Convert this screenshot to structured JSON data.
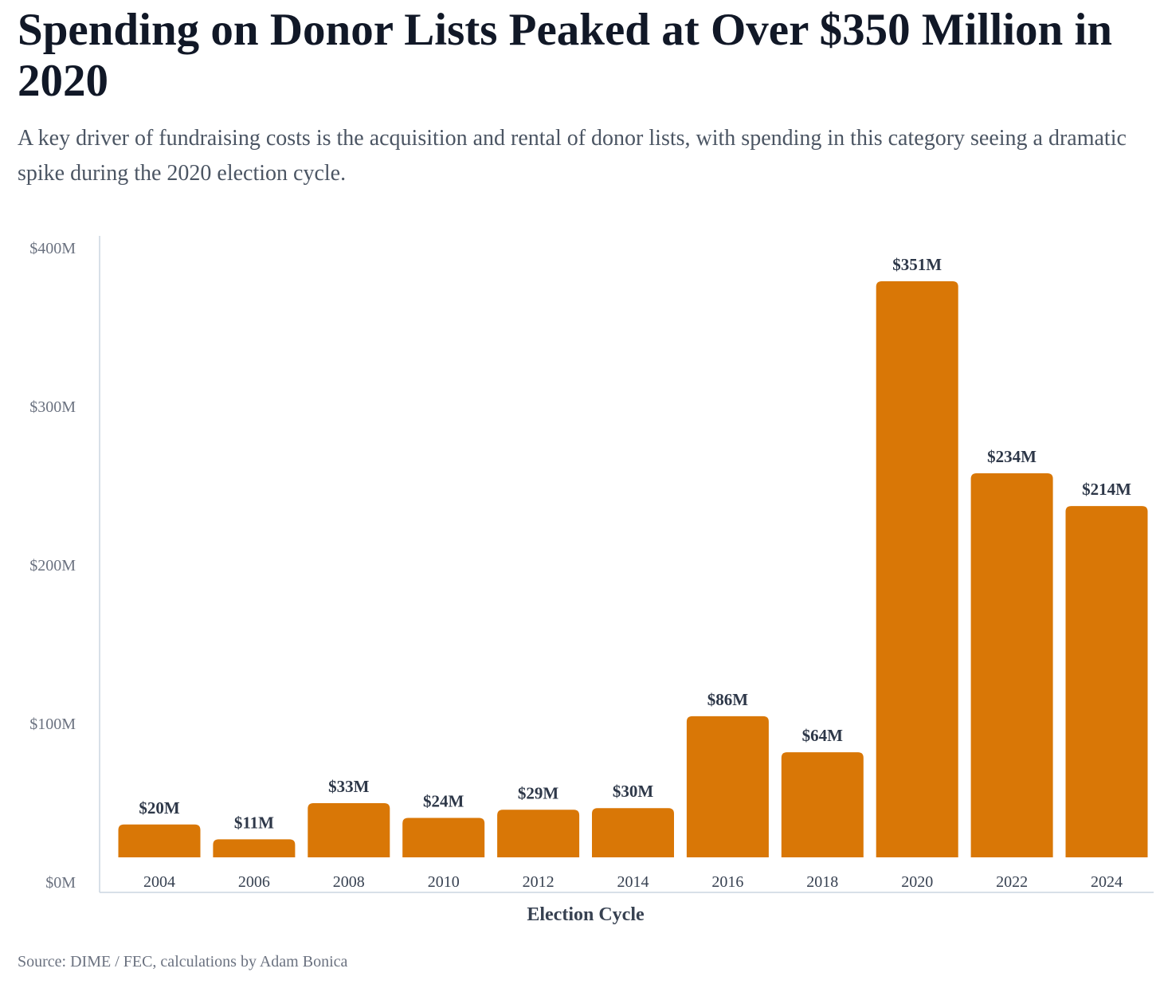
{
  "header": {
    "title": "Spending on Donor Lists Peaked at Over $350 Million in 2020",
    "subtitle": "A key driver of fundraising costs is the acquisition and rental of donor lists, with spending in this category seeing a dramatic spike during the 2020 election cycle."
  },
  "footer": {
    "source": "Source: DIME / FEC, calculations by Adam Bonica"
  },
  "colors": {
    "bar": "#D97706",
    "title": "#111827",
    "label": "#2d3748",
    "axis": "#cbd5e1",
    "tick": "#6b7280"
  },
  "chart_data": {
    "type": "bar",
    "title": "Spending on Donor Lists Peaked at Over $350 Million in 2020",
    "xlabel": "Election Cycle",
    "ylabel": "",
    "ylim": [
      0,
      400
    ],
    "yticks": [
      0,
      100,
      200,
      300,
      400
    ],
    "ytick_labels": [
      "$0M",
      "$100M",
      "$200M",
      "$300M",
      "$400M"
    ],
    "categories": [
      "2004",
      "2006",
      "2008",
      "2010",
      "2012",
      "2014",
      "2016",
      "2018",
      "2020",
      "2022",
      "2024"
    ],
    "values": [
      20,
      11,
      33,
      24,
      29,
      30,
      86,
      64,
      351,
      234,
      214
    ],
    "data_labels": [
      "$20M",
      "$11M",
      "$33M",
      "$24M",
      "$29M",
      "$30M",
      "$86M",
      "$64M",
      "$351M",
      "$234M",
      "$214M"
    ],
    "grid": false,
    "units": "millions USD"
  }
}
